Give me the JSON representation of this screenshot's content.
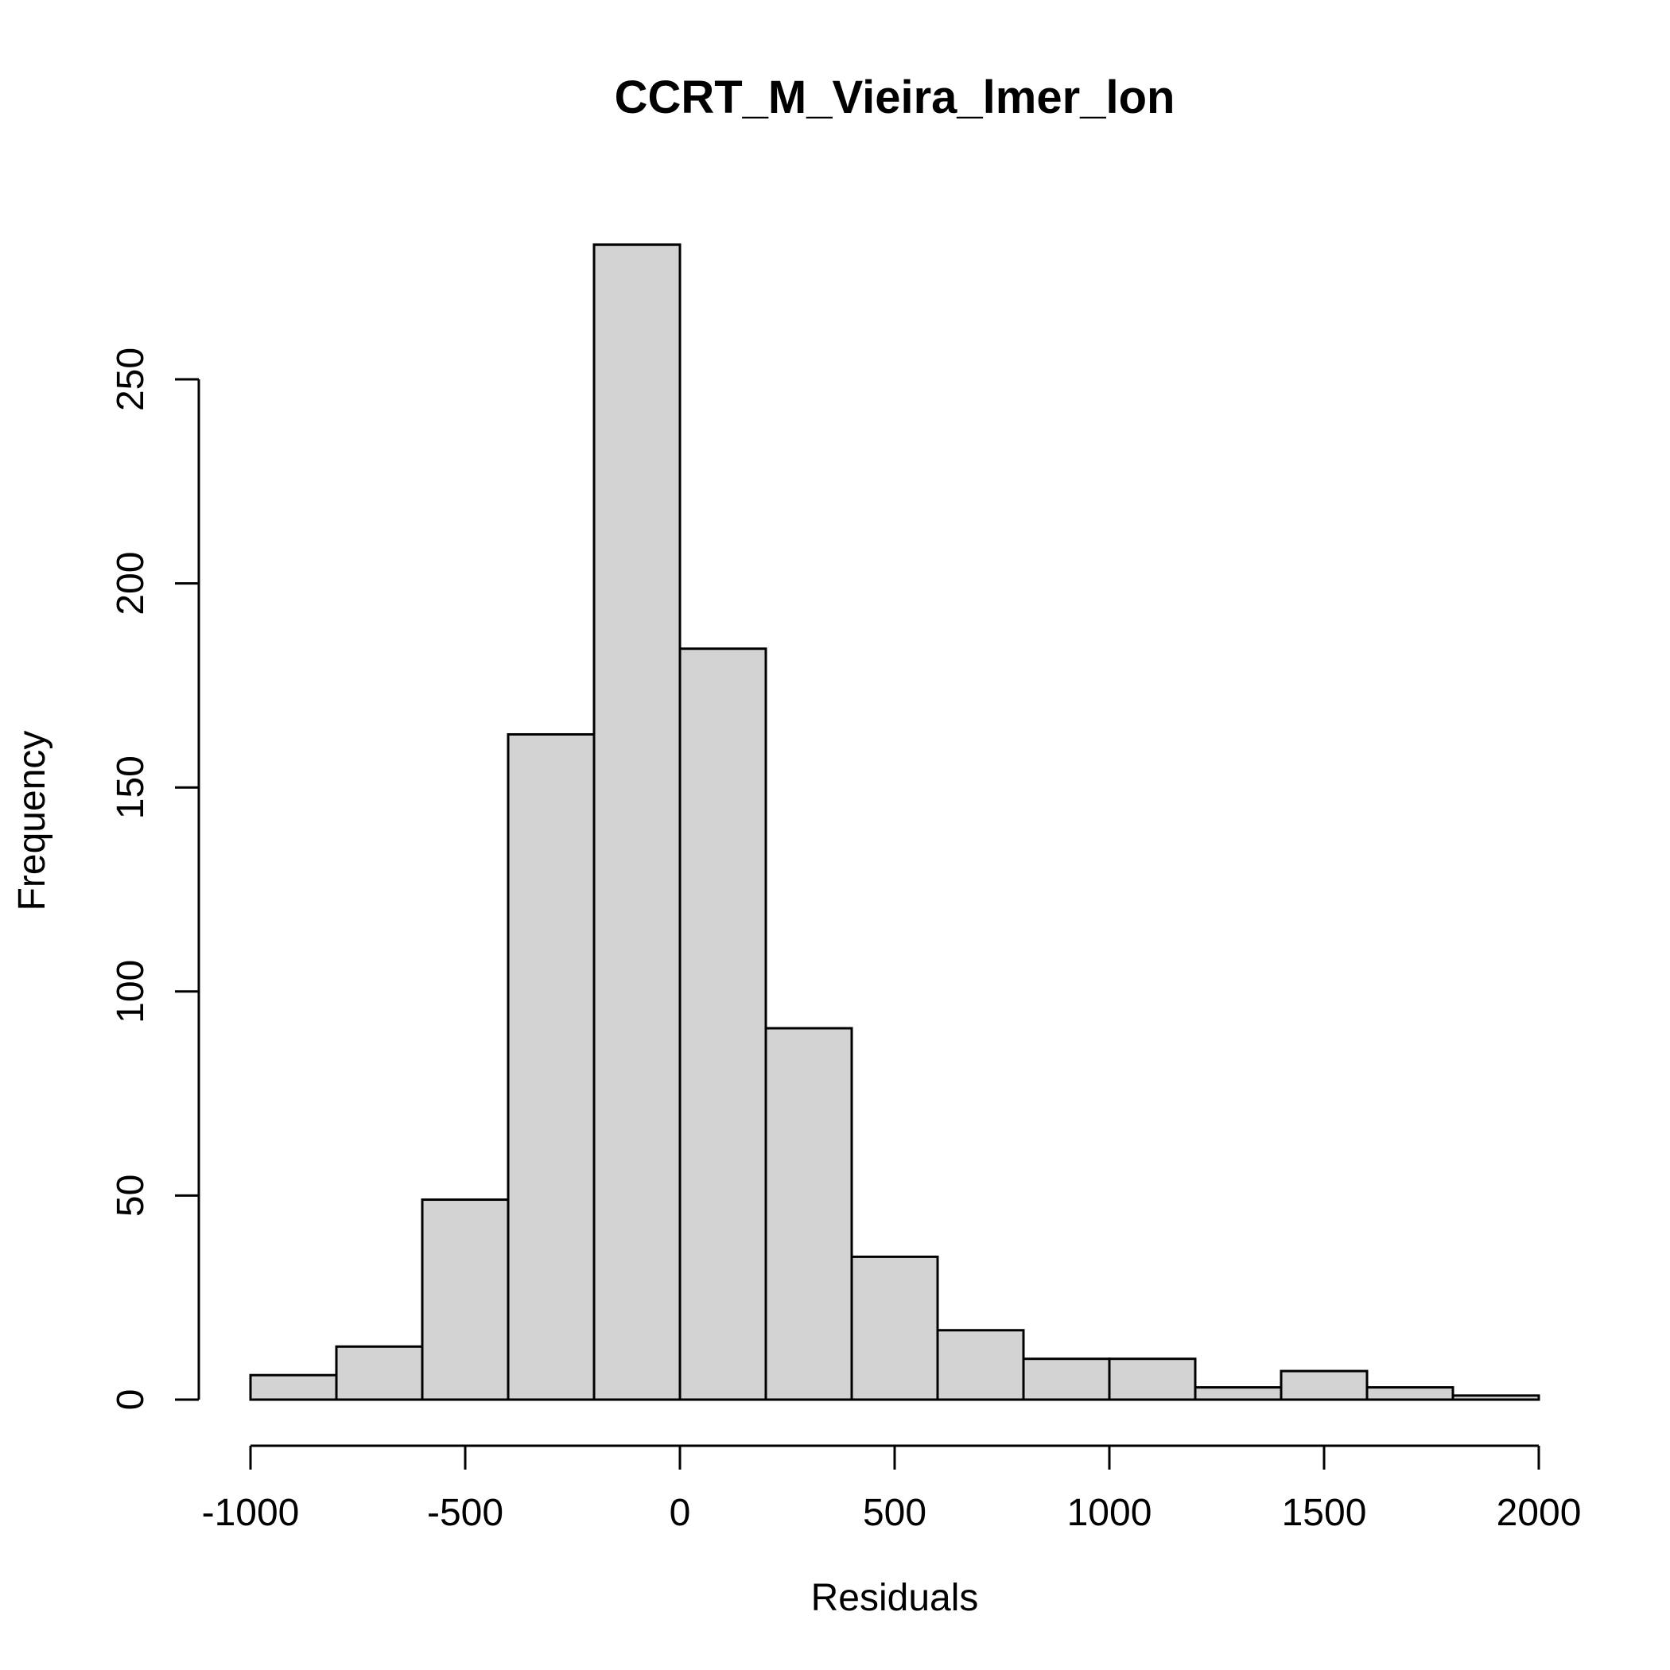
{
  "chart_data": {
    "type": "bar",
    "title": "CCRT_M_Vieira_lmer_lon",
    "xlabel": "Residuals",
    "ylabel": "Frequency",
    "xlim": [
      -1000,
      2000
    ],
    "ylim": [
      0,
      285
    ],
    "x_ticks": [
      -1000,
      -500,
      0,
      500,
      1000,
      1500,
      2000
    ],
    "y_ticks": [
      0,
      50,
      100,
      150,
      200,
      250
    ],
    "x_tick_labels": [
      "-1000",
      "-500",
      "0",
      "500",
      "1000",
      "1500",
      "2000"
    ],
    "y_tick_labels": [
      "0",
      "50",
      "100",
      "150",
      "200",
      "250"
    ],
    "bins": [
      {
        "from": -1000,
        "to": -800,
        "count": 6
      },
      {
        "from": -800,
        "to": -600,
        "count": 13
      },
      {
        "from": -600,
        "to": -400,
        "count": 49
      },
      {
        "from": -400,
        "to": -200,
        "count": 163
      },
      {
        "from": -200,
        "to": 0,
        "count": 283
      },
      {
        "from": 0,
        "to": 200,
        "count": 184
      },
      {
        "from": 200,
        "to": 400,
        "count": 91
      },
      {
        "from": 400,
        "to": 600,
        "count": 35
      },
      {
        "from": 600,
        "to": 800,
        "count": 17
      },
      {
        "from": 800,
        "to": 1000,
        "count": 10
      },
      {
        "from": 1000,
        "to": 1200,
        "count": 10
      },
      {
        "from": 1200,
        "to": 1400,
        "count": 3
      },
      {
        "from": 1400,
        "to": 1600,
        "count": 7
      },
      {
        "from": 1600,
        "to": 1800,
        "count": 3
      },
      {
        "from": 1800,
        "to": 2000,
        "count": 1
      }
    ],
    "grid": false,
    "legend": false
  }
}
